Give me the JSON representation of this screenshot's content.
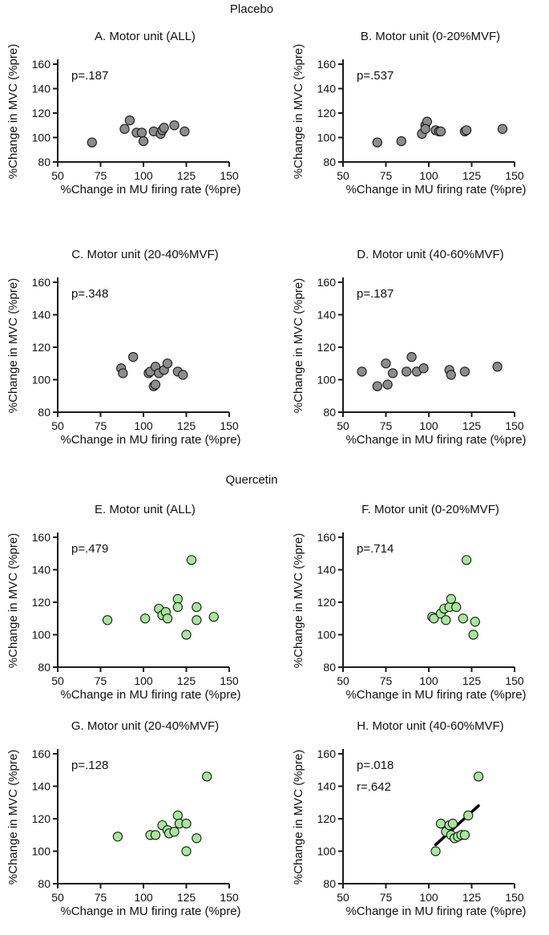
{
  "group_titles": {
    "placebo": "Placebo",
    "quercetin": "Quercetin"
  },
  "colors": {
    "placebo_point": "#8c8c8c",
    "quercetin_point": "#a6e89a",
    "point_edge": "#1a1a1a",
    "axis": "#1a1a1a",
    "fit_line": "#000000"
  },
  "chart_data": [
    {
      "type": "scatter",
      "group": "Placebo",
      "title": "A. Motor unit (ALL)",
      "stat_p": "p=.187",
      "xlabel": "%Change in MU firing rate (%pre)",
      "ylabel": "%Change in MVC (%pre)",
      "xlim": [
        50,
        150
      ],
      "ylim": [
        80,
        160
      ],
      "xticks": [
        "50",
        "75",
        "100",
        "125",
        "150"
      ],
      "yticks": [
        "80",
        "100",
        "120",
        "140",
        "160"
      ],
      "points": [
        [
          70,
          96
        ],
        [
          89,
          107
        ],
        [
          92,
          114
        ],
        [
          96,
          104
        ],
        [
          99,
          104
        ],
        [
          100,
          97
        ],
        [
          106,
          105
        ],
        [
          110,
          103
        ],
        [
          111,
          106
        ],
        [
          112,
          108
        ],
        [
          118,
          110
        ],
        [
          124,
          105
        ]
      ]
    },
    {
      "type": "scatter",
      "group": "Placebo",
      "title": "B. Motor unit (0-20%MVF)",
      "stat_p": "p=.537",
      "xlabel": "%Change in MU firing rate (%pre)",
      "ylabel": "%Change in MVC (%pre)",
      "xlim": [
        50,
        150
      ],
      "ylim": [
        80,
        160
      ],
      "xticks": [
        "50",
        "75",
        "100",
        "125",
        "150"
      ],
      "yticks": [
        "80",
        "100",
        "120",
        "140",
        "160"
      ],
      "points": [
        [
          70,
          96
        ],
        [
          84,
          97
        ],
        [
          96,
          103
        ],
        [
          98,
          110
        ],
        [
          99,
          113
        ],
        [
          98,
          107
        ],
        [
          104,
          106
        ],
        [
          106,
          105
        ],
        [
          107,
          105
        ],
        [
          121,
          105
        ],
        [
          122,
          106
        ],
        [
          143,
          107
        ]
      ]
    },
    {
      "type": "scatter",
      "group": "Placebo",
      "title": "C. Motor unit (20-40%MVF)",
      "stat_p": "p=.348",
      "xlabel": "%Change in MU firing rate (%pre)",
      "ylabel": "%Change in MVC (%pre)",
      "xlim": [
        50,
        150
      ],
      "ylim": [
        80,
        160
      ],
      "xticks": [
        "50",
        "75",
        "100",
        "125",
        "150"
      ],
      "yticks": [
        "80",
        "100",
        "120",
        "140",
        "160"
      ],
      "points": [
        [
          87,
          107
        ],
        [
          88,
          104
        ],
        [
          94,
          114
        ],
        [
          103,
          104
        ],
        [
          104,
          105
        ],
        [
          106,
          96
        ],
        [
          107,
          97
        ],
        [
          107,
          108
        ],
        [
          109,
          104
        ],
        [
          112,
          106
        ],
        [
          114,
          110
        ],
        [
          120,
          105
        ],
        [
          123,
          103
        ]
      ]
    },
    {
      "type": "scatter",
      "group": "Placebo",
      "title": "D. Motor unit (40-60%MVF)",
      "stat_p": "p=.187",
      "xlabel": "%Change in MU firing rate (%pre)",
      "ylabel": "%Change in MVC (%pre)",
      "xlim": [
        50,
        150
      ],
      "ylim": [
        80,
        160
      ],
      "xticks": [
        "50",
        "75",
        "100",
        "125",
        "150"
      ],
      "yticks": [
        "80",
        "100",
        "120",
        "140",
        "160"
      ],
      "points": [
        [
          61,
          105
        ],
        [
          70,
          96
        ],
        [
          75,
          110
        ],
        [
          76,
          97
        ],
        [
          79,
          104
        ],
        [
          87,
          105
        ],
        [
          90,
          114
        ],
        [
          93,
          105
        ],
        [
          97,
          107
        ],
        [
          112,
          106
        ],
        [
          113,
          103
        ],
        [
          121,
          105
        ],
        [
          140,
          108
        ]
      ]
    },
    {
      "type": "scatter",
      "group": "Quercetin",
      "title": "E. Motor unit (ALL)",
      "stat_p": "p=.479",
      "xlabel": "%Change in MU firing rate (%pre)",
      "ylabel": "%Change in MVC (%pre)",
      "xlim": [
        50,
        150
      ],
      "ylim": [
        80,
        160
      ],
      "xticks": [
        "50",
        "75",
        "100",
        "125",
        "150"
      ],
      "yticks": [
        "80",
        "100",
        "120",
        "140",
        "160"
      ],
      "points": [
        [
          79,
          109
        ],
        [
          101,
          110
        ],
        [
          109,
          116
        ],
        [
          111,
          112
        ],
        [
          113,
          114
        ],
        [
          114,
          110
        ],
        [
          120,
          122
        ],
        [
          120,
          117
        ],
        [
          125,
          100
        ],
        [
          128,
          146
        ],
        [
          131,
          117
        ],
        [
          131,
          109
        ],
        [
          141,
          111
        ]
      ]
    },
    {
      "type": "scatter",
      "group": "Quercetin",
      "title": "F. Motor unit (0-20%MVF)",
      "stat_p": "p=.714",
      "xlabel": "%Change in MU firing rate (%pre)",
      "ylabel": "%Change in MVC (%pre)",
      "xlim": [
        50,
        150
      ],
      "ylim": [
        80,
        160
      ],
      "xticks": [
        "50",
        "75",
        "100",
        "125",
        "150"
      ],
      "yticks": [
        "80",
        "100",
        "120",
        "140",
        "160"
      ],
      "points": [
        [
          102,
          111
        ],
        [
          103,
          110
        ],
        [
          107,
          113
        ],
        [
          109,
          116
        ],
        [
          110,
          109
        ],
        [
          112,
          117
        ],
        [
          113,
          122
        ],
        [
          116,
          117
        ],
        [
          120,
          110
        ],
        [
          122,
          146
        ],
        [
          126,
          100
        ],
        [
          127,
          108
        ]
      ]
    },
    {
      "type": "scatter",
      "group": "Quercetin",
      "title": "G. Motor unit (20-40%MVF)",
      "stat_p": "p=.128",
      "xlabel": "%Change in MU firing rate (%pre)",
      "ylabel": "%Change in MVC (%pre)",
      "xlim": [
        50,
        150
      ],
      "ylim": [
        80,
        160
      ],
      "xticks": [
        "50",
        "75",
        "100",
        "125",
        "150"
      ],
      "yticks": [
        "80",
        "100",
        "120",
        "140",
        "160"
      ],
      "points": [
        [
          85,
          109
        ],
        [
          104,
          110
        ],
        [
          107,
          110
        ],
        [
          111,
          116
        ],
        [
          114,
          113
        ],
        [
          115,
          111
        ],
        [
          118,
          112
        ],
        [
          120,
          122
        ],
        [
          121,
          117
        ],
        [
          125,
          117
        ],
        [
          125,
          100
        ],
        [
          131,
          108
        ],
        [
          137,
          146
        ]
      ]
    },
    {
      "type": "scatter",
      "group": "Quercetin",
      "title": "H. Motor unit (40-60%MVF)",
      "stat_p": "p=.018",
      "stat_r": "r=.642",
      "xlabel": "%Change in MU firing rate (%pre)",
      "ylabel": "%Change in MVC (%pre)",
      "xlim": [
        50,
        150
      ],
      "ylim": [
        80,
        160
      ],
      "xticks": [
        "50",
        "75",
        "100",
        "125",
        "150"
      ],
      "yticks": [
        "80",
        "100",
        "120",
        "140",
        "160"
      ],
      "points": [
        [
          104,
          100
        ],
        [
          107,
          117
        ],
        [
          110,
          112
        ],
        [
          112,
          116
        ],
        [
          113,
          110
        ],
        [
          114,
          117
        ],
        [
          115,
          108
        ],
        [
          117,
          109
        ],
        [
          119,
          110
        ],
        [
          121,
          110
        ],
        [
          123,
          122
        ],
        [
          129,
          146
        ]
      ],
      "fit_line": [
        [
          104,
          104
        ],
        [
          129,
          128
        ]
      ]
    }
  ]
}
